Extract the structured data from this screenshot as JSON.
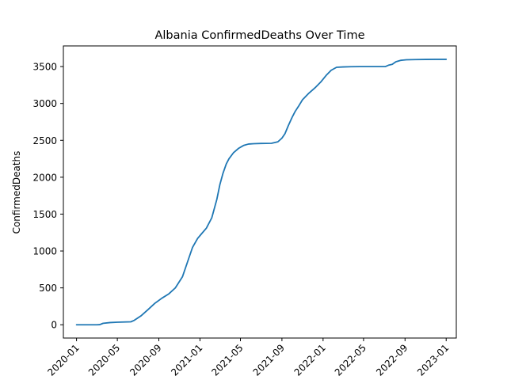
{
  "chart_data": {
    "type": "line",
    "title": "Albania  ConfirmedDeaths Over Time",
    "xlabel": "",
    "ylabel": "ConfirmedDeaths",
    "xlim": [
      "2019-11-23",
      "2023-01-31"
    ],
    "ylim": [
      -180,
      3780
    ],
    "grid": false,
    "x_ticks": [
      "2020-01",
      "2020-05",
      "2020-09",
      "2021-01",
      "2021-05",
      "2021-09",
      "2022-01",
      "2022-05",
      "2022-09",
      "2023-01"
    ],
    "y_ticks": [
      0,
      500,
      1000,
      1500,
      2000,
      2500,
      3000,
      3500
    ],
    "series": [
      {
        "color": "#1f77b4",
        "x": [
          "2020-01-01",
          "2020-03-01",
          "2020-03-10",
          "2020-03-20",
          "2020-04-10",
          "2020-05-01",
          "2020-06-10",
          "2020-06-20",
          "2020-07-10",
          "2020-08-01",
          "2020-08-20",
          "2020-09-10",
          "2020-10-01",
          "2020-10-20",
          "2020-11-10",
          "2020-11-25",
          "2020-12-10",
          "2020-12-25",
          "2021-01-05",
          "2021-01-20",
          "2021-02-05",
          "2021-02-20",
          "2021-03-01",
          "2021-03-10",
          "2021-03-20",
          "2021-03-28",
          "2021-04-10",
          "2021-04-25",
          "2021-05-10",
          "2021-05-25",
          "2021-06-10",
          "2021-07-01",
          "2021-08-01",
          "2021-08-20",
          "2021-09-01",
          "2021-09-10",
          "2021-09-20",
          "2021-10-01",
          "2021-10-10",
          "2021-10-20",
          "2021-11-01",
          "2021-11-20",
          "2021-12-10",
          "2021-12-25",
          "2022-01-10",
          "2022-01-25",
          "2022-02-10",
          "2022-03-01",
          "2022-03-25",
          "2022-04-20",
          "2022-05-15",
          "2022-06-10",
          "2022-07-05",
          "2022-07-15",
          "2022-07-25",
          "2022-08-05",
          "2022-08-20",
          "2022-09-05",
          "2022-10-01",
          "2022-11-01",
          "2022-12-01",
          "2023-01-01"
        ],
        "y": [
          0,
          0,
          2,
          20,
          30,
          35,
          40,
          60,
          120,
          210,
          290,
          360,
          420,
          500,
          650,
          850,
          1050,
          1170,
          1230,
          1310,
          1450,
          1700,
          1900,
          2050,
          2180,
          2250,
          2330,
          2390,
          2430,
          2450,
          2455,
          2458,
          2460,
          2480,
          2530,
          2590,
          2700,
          2810,
          2890,
          2960,
          3050,
          3140,
          3220,
          3290,
          3380,
          3450,
          3490,
          3495,
          3498,
          3500,
          3500,
          3500,
          3500,
          3520,
          3530,
          3565,
          3585,
          3592,
          3595,
          3597,
          3598,
          3598
        ]
      }
    ]
  }
}
